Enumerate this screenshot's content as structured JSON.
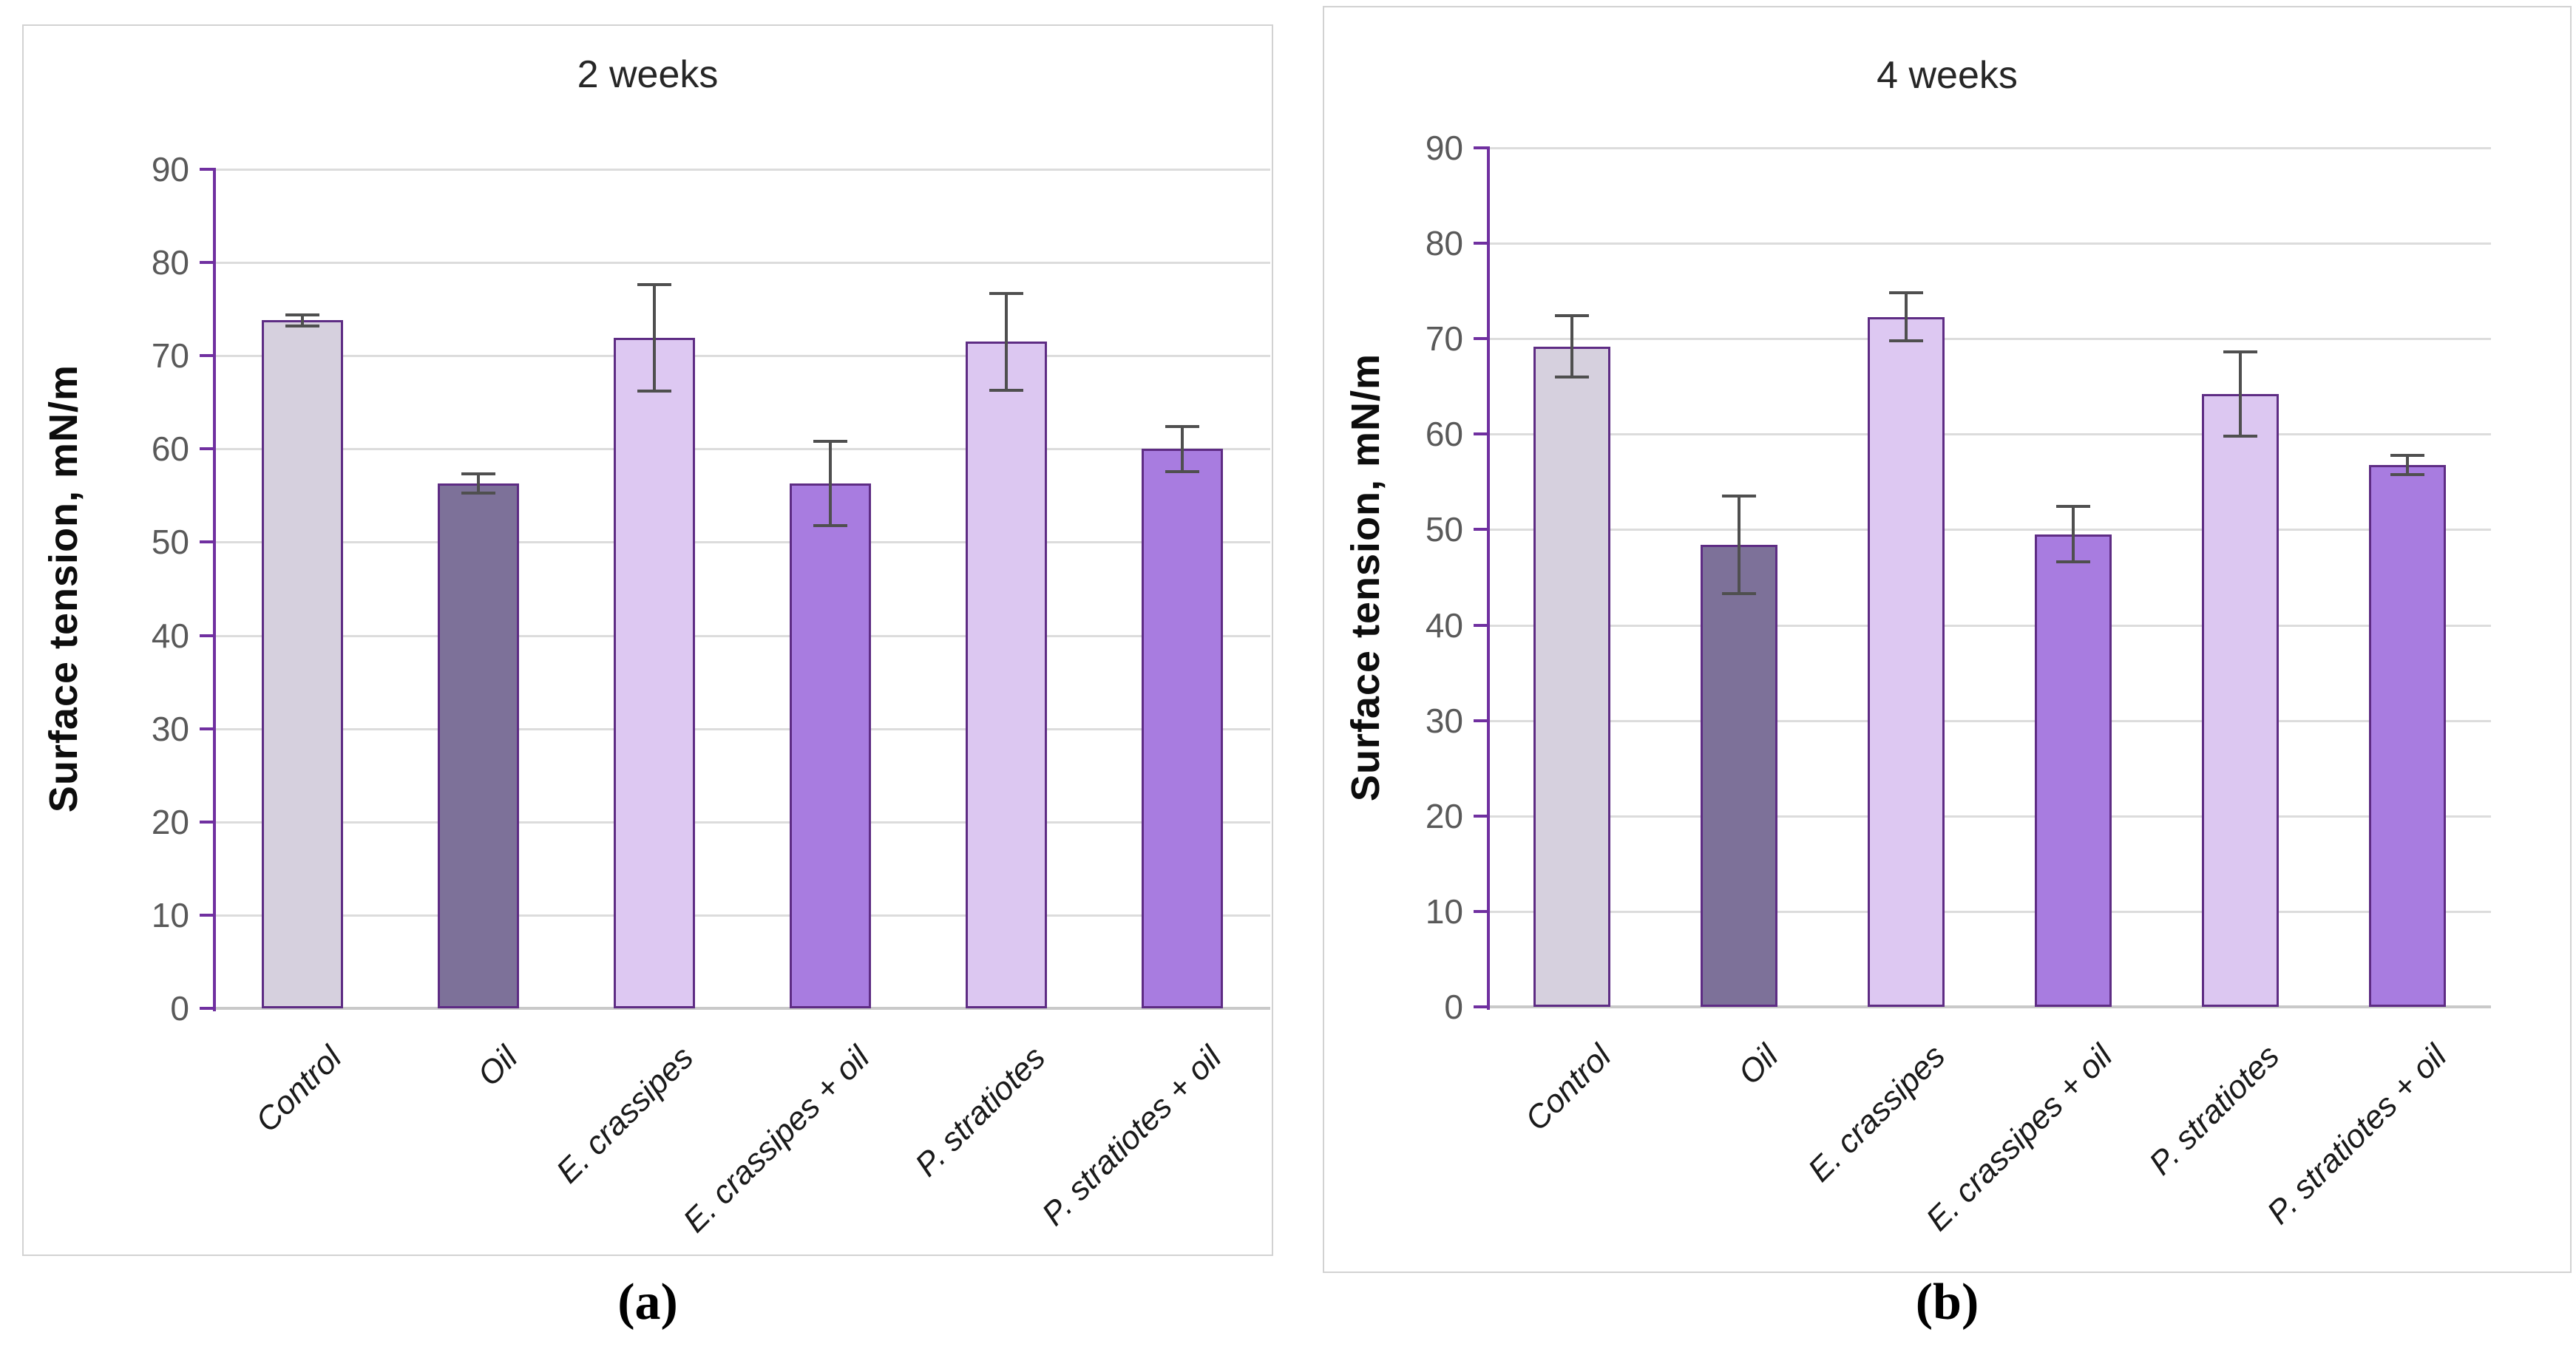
{
  "figure": {
    "panels": [
      {
        "caption": "(a)"
      },
      {
        "caption": "(b)"
      }
    ]
  },
  "chart_data": [
    {
      "type": "bar",
      "title": "2 weeks",
      "xlabel": "",
      "ylabel": "Surface tension, mN/m",
      "ylim": [
        0,
        90
      ],
      "yticks": [
        0,
        10,
        20,
        30,
        40,
        50,
        60,
        70,
        80,
        90
      ],
      "grid": true,
      "categories": [
        "Control",
        "Oil",
        "E. crassipes",
        "E. crassipes + oil",
        "P. stratiotes",
        "P. stratiotes + oil"
      ],
      "values": [
        73.8,
        56.3,
        71.9,
        56.3,
        71.5,
        60.0
      ],
      "error_bars": [
        0.6,
        1.0,
        5.7,
        4.5,
        5.2,
        2.4
      ],
      "bar_colors": [
        "#d6d0de",
        "#7d7199",
        "#ddc8f2",
        "#a87ce0",
        "#dcc7f1",
        "#a87ce0"
      ]
    },
    {
      "type": "bar",
      "title": "4 weeks",
      "xlabel": "",
      "ylabel": "Surface tension, mN/m",
      "ylim": [
        0,
        90
      ],
      "yticks": [
        0,
        10,
        20,
        30,
        40,
        50,
        60,
        70,
        80,
        90
      ],
      "grid": true,
      "categories": [
        "Control",
        "Oil",
        "E. crassipes",
        "E. crassipes + oil",
        "P. stratiotes",
        "P. stratiotes + oil"
      ],
      "values": [
        69.2,
        48.4,
        72.3,
        49.5,
        64.2,
        56.8
      ],
      "error_bars": [
        3.2,
        5.1,
        2.5,
        2.9,
        4.4,
        1.0
      ],
      "bar_colors": [
        "#d6d0de",
        "#7d7199",
        "#ddc8f2",
        "#a87ce0",
        "#dcc7f1",
        "#a87ce0"
      ]
    }
  ],
  "colors": {
    "axis": "#7030a0",
    "bar_border": "#5e2c84",
    "gridline": "#dcdcdc",
    "baseline": "#c9c9c9",
    "tick_text": "#595959",
    "error_bar": "#4f4f4f",
    "title_text": "#262626",
    "category_text": "#1a1a1a",
    "panel_border": "#d2d2d2"
  }
}
